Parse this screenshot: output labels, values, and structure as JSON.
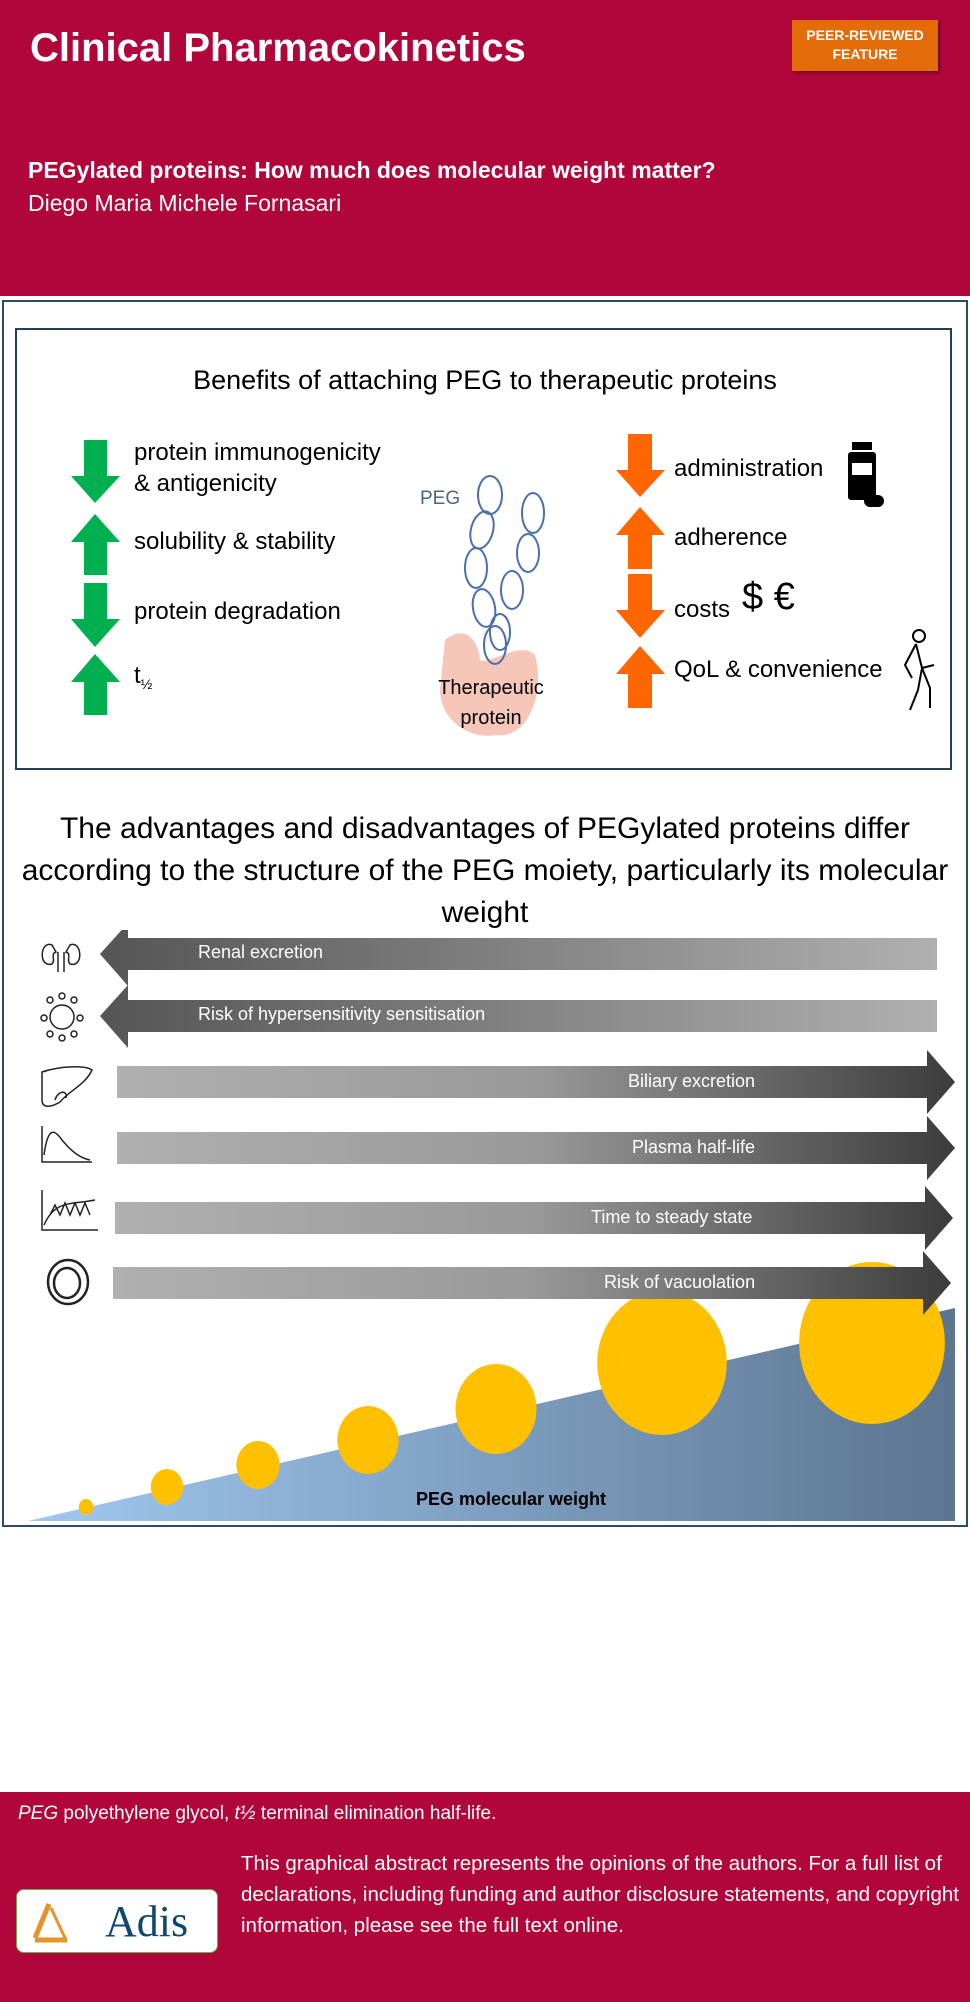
{
  "header": {
    "journal": "Clinical Pharmacokinetics",
    "badge_line1": "PEER-REVIEWED",
    "badge_line2": "FEATURE",
    "title": "PEGylated proteins: How much does molecular weight matter?",
    "author": "Diego Maria Michele Fornasari",
    "background_color": "#B0063A",
    "badge_color": "#E36C09"
  },
  "benefits": {
    "title": "Benefits of attaching PEG to therapeutic proteins",
    "left_items": [
      {
        "label_line1": "protein immunogenicity",
        "label_line2": "& antigenicity",
        "direction": "down"
      },
      {
        "label_line1": "solubility & stability",
        "direction": "up"
      },
      {
        "label_line1": "protein degradation",
        "direction": "down"
      },
      {
        "label_line1": "t",
        "subscript": "½",
        "direction": "up"
      }
    ],
    "right_items": [
      {
        "label": "administration",
        "direction": "down",
        "icon": "medicine-bottle-icon"
      },
      {
        "label": "adherence",
        "direction": "up"
      },
      {
        "label": "costs",
        "symbols": "$ €",
        "direction": "down"
      },
      {
        "label": "QoL & convenience",
        "direction": "up",
        "icon": "walking-person-icon"
      }
    ],
    "peg_label": "PEG",
    "protein_label_line1": "Therapeutic",
    "protein_label_line2": "protein",
    "left_arrow_color": "#00B050",
    "right_arrow_color": "#FF6600"
  },
  "headline": "The advantages and disadvantages of PEGylated proteins differ according to the structure of the PEG moiety, particularly its molecular weight",
  "trends": [
    {
      "label": "Renal excretion",
      "direction": "decreases",
      "icon": "kidney-icon"
    },
    {
      "label": "Risk of hypersensitivity sensitisation",
      "direction": "decreases",
      "icon": "immune-cell-icon"
    },
    {
      "label": "Biliary excretion",
      "direction": "increases",
      "icon": "liver-icon"
    },
    {
      "label": "Plasma half-life",
      "direction": "increases",
      "icon": "concentration-decay-curve-icon"
    },
    {
      "label": "Time to steady state",
      "direction": "increases",
      "icon": "steady-state-curve-icon"
    },
    {
      "label": "Risk of vacuolation",
      "direction": "increases",
      "icon": "vacuole-icon"
    }
  ],
  "axis_label": "PEG molecular weight",
  "bubble_color": "#FFC000",
  "footer": {
    "abbreviations_italic1": "PEG",
    "abbreviations_text1": " polyethylene glycol, ",
    "abbreviations_italic2": "t½",
    "abbreviations_text2": " terminal elimination half-life.",
    "disclaimer": "This graphical abstract represents the opinions of the authors. For a full list of declarations, including funding and author disclosure statements, and copyright information, please see the full text online.",
    "logo": "Adis"
  }
}
